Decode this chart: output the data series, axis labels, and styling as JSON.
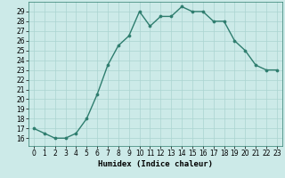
{
  "x": [
    0,
    1,
    2,
    3,
    4,
    5,
    6,
    7,
    8,
    9,
    10,
    11,
    12,
    13,
    14,
    15,
    16,
    17,
    18,
    19,
    20,
    21,
    22,
    23
  ],
  "y": [
    17,
    16.5,
    16,
    16,
    16.5,
    18,
    20.5,
    23.5,
    25.5,
    26.5,
    29,
    27.5,
    28.5,
    28.5,
    29.5,
    29,
    29,
    28,
    28,
    26,
    25,
    23.5,
    23,
    23
  ],
  "xlabel": "Humidex (Indice chaleur)",
  "xlim": [
    -0.5,
    23.5
  ],
  "ylim": [
    15.2,
    30.0
  ],
  "yticks": [
    16,
    17,
    18,
    19,
    20,
    21,
    22,
    23,
    24,
    25,
    26,
    27,
    28,
    29
  ],
  "xticks": [
    0,
    1,
    2,
    3,
    4,
    5,
    6,
    7,
    8,
    9,
    10,
    11,
    12,
    13,
    14,
    15,
    16,
    17,
    18,
    19,
    20,
    21,
    22,
    23
  ],
  "line_color": "#2e7d6e",
  "marker_size": 2.2,
  "bg_color": "#cceae8",
  "grid_color": "#aad4d0",
  "xlabel_fontsize": 6.5,
  "tick_fontsize": 5.5,
  "linewidth": 1.0
}
